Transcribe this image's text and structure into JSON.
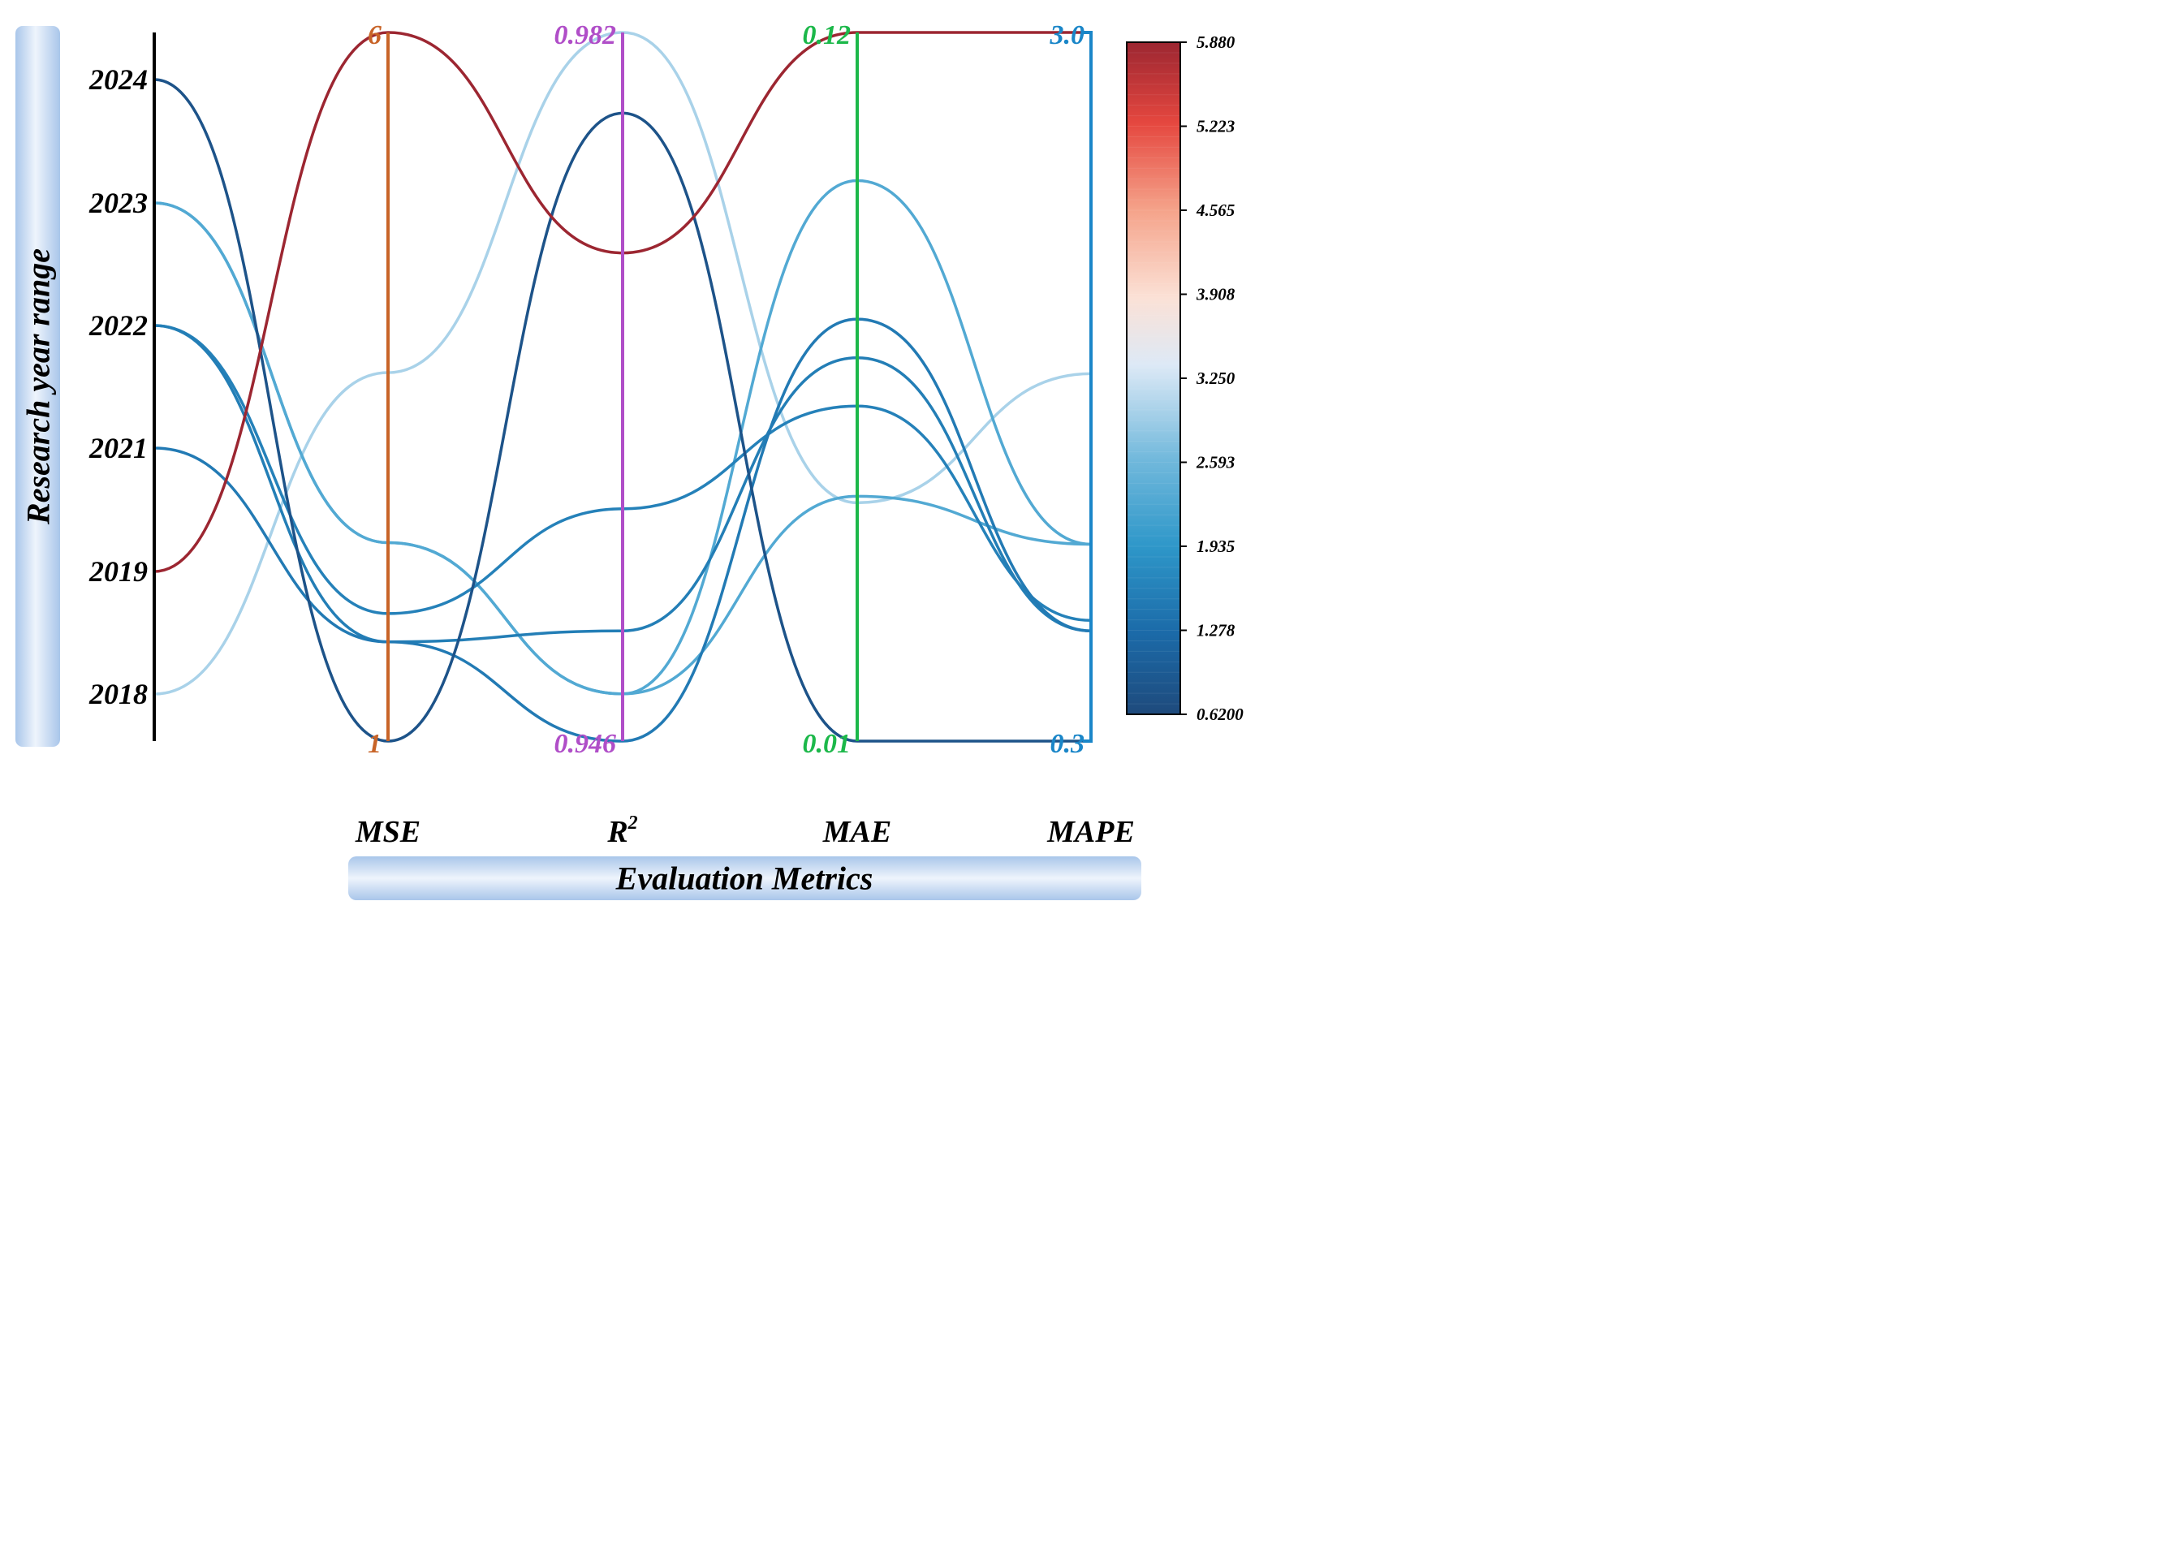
{
  "chart_data": {
    "type": "parallel-coordinates",
    "y_axis_label": "Research year range",
    "x_axis_label": "Evaluation Metrics",
    "year_axis": {
      "ticks": [
        "2018",
        "2019",
        "2021",
        "2022",
        "2023",
        "2024"
      ]
    },
    "metrics": [
      {
        "key": "MSE",
        "label": "MSE",
        "sup": "",
        "min": 1,
        "max": 6,
        "min_label": "1",
        "max_label": "6",
        "color": "#c86428"
      },
      {
        "key": "R2",
        "label": "R",
        "sup": "2",
        "min": 0.946,
        "max": 0.982,
        "min_label": "0.946",
        "max_label": "0.982",
        "color": "#b04ec8"
      },
      {
        "key": "MAE",
        "label": "MAE",
        "sup": "",
        "min": 0.01,
        "max": 0.12,
        "min_label": "0.01",
        "max_label": "0.12",
        "color": "#1cb84a"
      },
      {
        "key": "MAPE",
        "label": "MAPE",
        "sup": "",
        "min": 0.3,
        "max": 3.0,
        "min_label": "0.3",
        "max_label": "3.0",
        "color": "#1a86c8"
      }
    ],
    "series": [
      {
        "year": "2018",
        "MSE": 3.6,
        "R2": 0.982,
        "MAE": 0.047,
        "MAPE": 1.7,
        "color_value": 3.0
      },
      {
        "year": "2019",
        "MSE": 6.0,
        "R2": 0.9708,
        "MAE": 0.12,
        "MAPE": 3.0,
        "color_value": 5.88
      },
      {
        "year": "2021",
        "MSE": 1.7,
        "R2": 0.946,
        "MAE": 0.0755,
        "MAPE": 0.72,
        "color_value": 1.5
      },
      {
        "year": "2022",
        "MSE": 1.9,
        "R2": 0.9578,
        "MAE": 0.062,
        "MAPE": 0.76,
        "color_value": 1.6
      },
      {
        "year": "2022",
        "MSE": 1.7,
        "R2": 0.9516,
        "MAE": 0.0695,
        "MAPE": 0.72,
        "color_value": 1.55
      },
      {
        "year": "2023",
        "MSE": 2.4,
        "R2": 0.9484,
        "MAE": 0.048,
        "MAPE": 1.05,
        "color_value": 2.3
      },
      {
        "year": "2023",
        "MSE": 2.4,
        "R2": 0.9484,
        "MAE": 0.097,
        "MAPE": 1.05,
        "color_value": 2.3
      },
      {
        "year": "2024",
        "MSE": 1.0,
        "R2": 0.9779,
        "MAE": 0.01,
        "MAPE": 0.3,
        "color_value": 0.8
      }
    ],
    "colorbar": {
      "min": 0.62,
      "max": 5.88,
      "ticks": [
        "5.880",
        "5.223",
        "4.565",
        "3.908",
        "3.250",
        "2.593",
        "1.935",
        "1.278",
        "0.6200"
      ]
    }
  }
}
